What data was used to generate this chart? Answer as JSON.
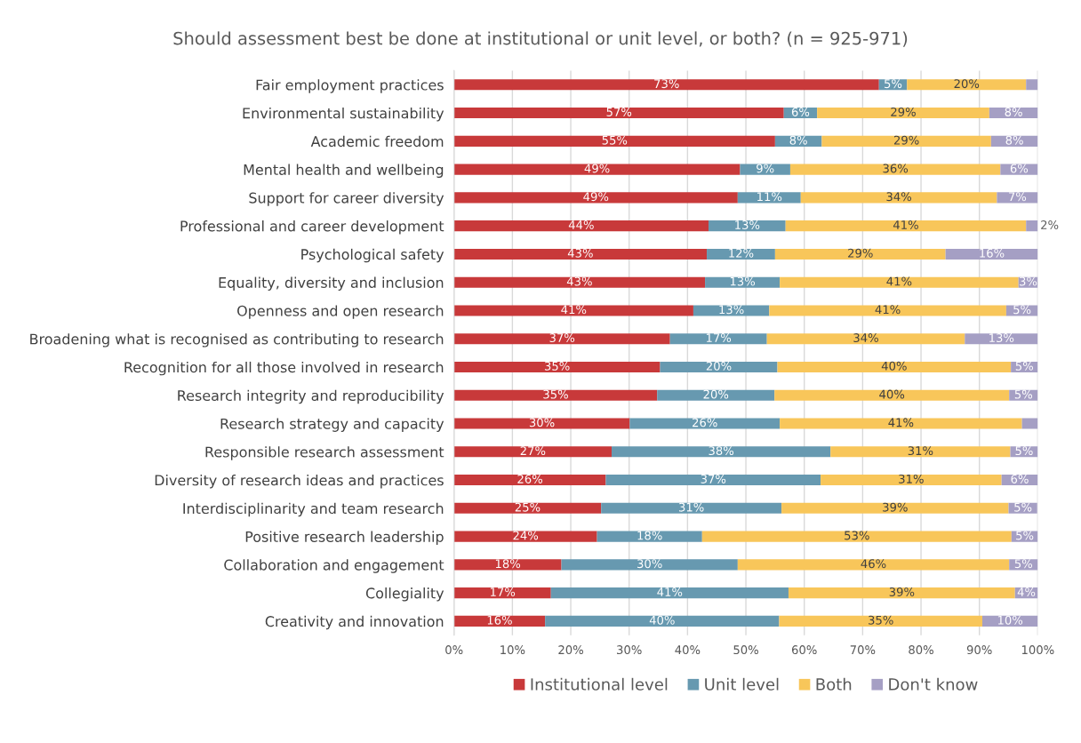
{
  "chart_data": {
    "type": "bar",
    "orientation": "horizontal",
    "stacked": true,
    "title": "Should assessment best be done at institutional or unit level, or both? (n = 925-971)",
    "categories": [
      "Fair employment practices",
      "Environmental sustainability",
      "Academic freedom",
      "Mental health and wellbeing",
      "Support for career diversity",
      "Professional and career development",
      "Psychological safety",
      "Equality, diversity and inclusion",
      "Openness and open research",
      "Broadening what is recognised as contributing to research",
      "Recognition for all those involved in research",
      "Research integrity and reproducibility",
      "Research strategy and capacity",
      "Responsible research assessment",
      "Diversity of research ideas and practices",
      "Interdisciplinarity and team research",
      "Positive research leadership",
      "Collaboration and engagement",
      "Collegiality",
      "Creativity and innovation"
    ],
    "series": [
      {
        "name": "Institutional level",
        "color": "#c8393a",
        "values": [
          72.8,
          56.5,
          55,
          49,
          48.6,
          43.6,
          43.3,
          43,
          41,
          37,
          35.3,
          34.8,
          30.1,
          27,
          26,
          25.2,
          24.5,
          18.4,
          16.6,
          15.6
        ],
        "value_labels": [
          "73%",
          "57%",
          "55%",
          "49%",
          "49%",
          "44%",
          "43%",
          "43%",
          "41%",
          "37%",
          "35%",
          "35%",
          "30%",
          "27%",
          "26%",
          "25%",
          "24%",
          "18%",
          "17%",
          "16%"
        ]
      },
      {
        "name": "Unit level",
        "color": "#6799b0",
        "values": [
          4.8,
          5.7,
          8,
          8.6,
          10.8,
          13.2,
          11.7,
          12.8,
          13,
          16.6,
          20.1,
          20.1,
          25.7,
          37.5,
          36.8,
          30.9,
          18,
          30.2,
          40.7,
          40.1
        ],
        "value_labels": [
          "5%",
          "6%",
          "8%",
          "9%",
          "11%",
          "13%",
          "12%",
          "13%",
          "13%",
          "17%",
          "20%",
          "20%",
          "26%",
          "38%",
          "37%",
          "31%",
          "18%",
          "30%",
          "41%",
          "40%"
        ]
      },
      {
        "name": "Both",
        "color": "#f8c65a",
        "values": [
          20.4,
          29.5,
          29,
          36,
          33.6,
          41.2,
          29.2,
          40.9,
          40.6,
          33.9,
          40,
          40.2,
          41.5,
          30.8,
          31,
          38.9,
          53,
          46.5,
          38.8,
          34.8
        ],
        "value_labels": [
          "20%",
          "29%",
          "29%",
          "36%",
          "34%",
          "41%",
          "29%",
          "41%",
          "41%",
          "34%",
          "40%",
          "40%",
          "41%",
          "31%",
          "31%",
          "39%",
          "53%",
          "46%",
          "39%",
          "35%"
        ]
      },
      {
        "name": "Don't know",
        "color": "#a59fc4",
        "values": [
          2,
          8.3,
          8,
          6.4,
          7,
          2,
          15.8,
          3.3,
          5.4,
          12.5,
          4.6,
          4.9,
          2.7,
          4.7,
          6.2,
          4.9,
          4.5,
          4.9,
          3.9,
          9.5
        ],
        "value_labels": [
          null,
          "8%",
          "8%",
          "6%",
          "7%",
          "2%",
          "16%",
          "3%",
          "5%",
          "13%",
          "5%",
          "5%",
          null,
          "5%",
          "6%",
          "5%",
          "5%",
          "5%",
          "4%",
          "10%"
        ]
      }
    ],
    "xlim": [
      0,
      100
    ],
    "xticks": [
      {
        "value": 0,
        "label": "0%"
      },
      {
        "value": 10,
        "label": "10%"
      },
      {
        "value": 20,
        "label": "20%"
      },
      {
        "value": 30,
        "label": "30%"
      },
      {
        "value": 40,
        "label": "40%"
      },
      {
        "value": 50,
        "label": "50%"
      },
      {
        "value": 60,
        "label": "60%"
      },
      {
        "value": 70,
        "label": "70%"
      },
      {
        "value": 80,
        "label": "80%"
      },
      {
        "value": 90,
        "label": "90%"
      },
      {
        "value": 100,
        "label": "100%"
      }
    ],
    "grid": "x",
    "legend": "bottom"
  }
}
